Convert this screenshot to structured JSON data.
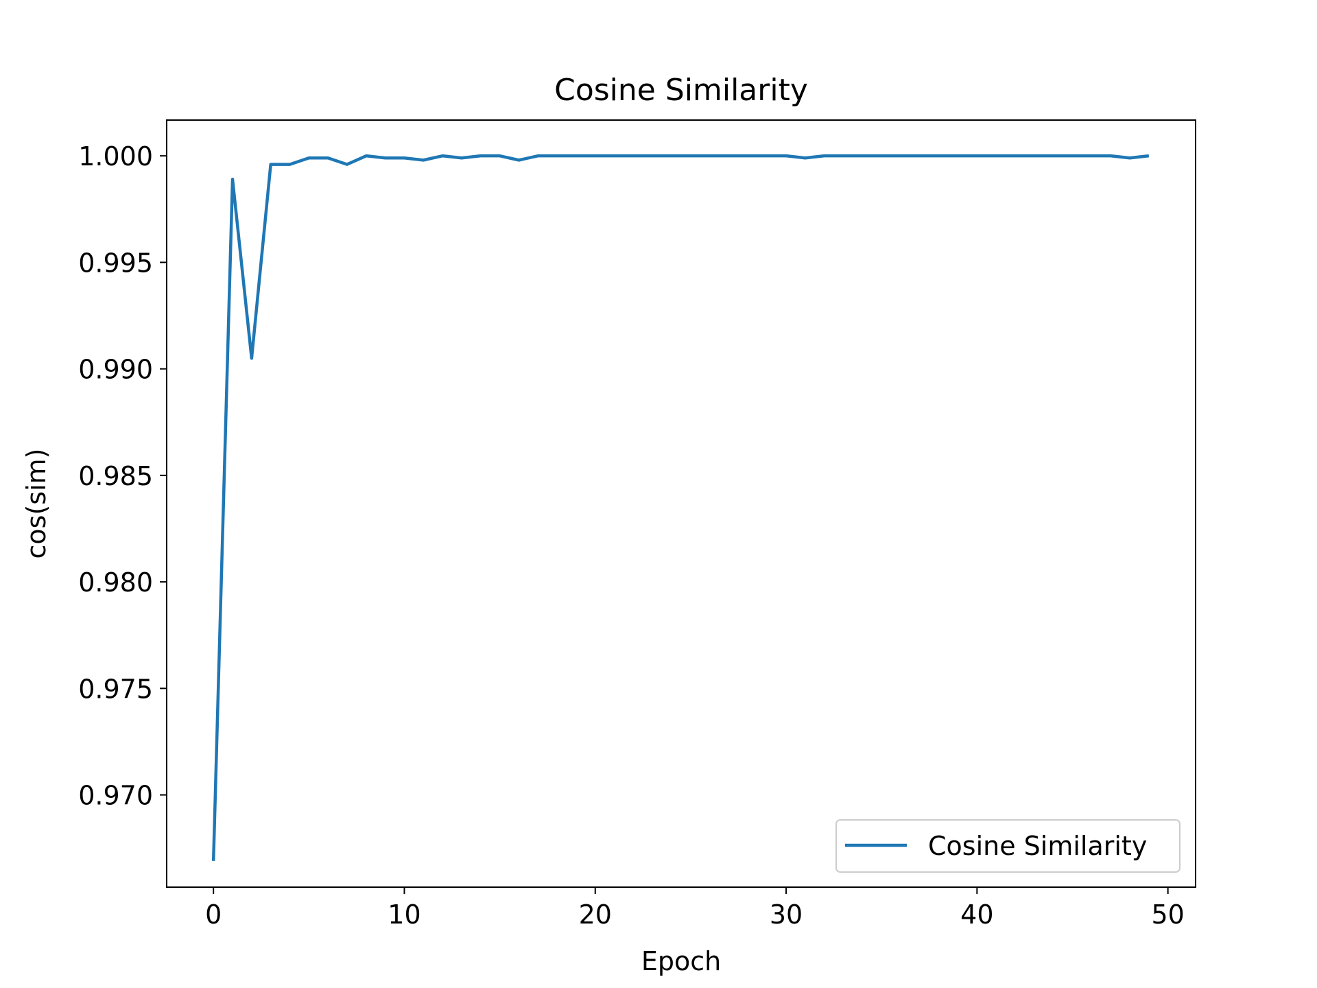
{
  "chart_data": {
    "type": "line",
    "title": "Cosine Similarity",
    "xlabel": "Epoch",
    "ylabel": "cos(sim)",
    "xlim": [
      -2.45,
      51.45
    ],
    "ylim": [
      0.96567,
      1.00168
    ],
    "xticks": [
      0,
      10,
      20,
      30,
      40,
      50
    ],
    "xtick_labels": [
      "0",
      "10",
      "20",
      "30",
      "40",
      "50"
    ],
    "yticks": [
      0.97,
      0.975,
      0.98,
      0.985,
      0.99,
      0.995,
      1.0
    ],
    "ytick_labels": [
      "0.970",
      "0.975",
      "0.980",
      "0.985",
      "0.990",
      "0.995",
      "1.000"
    ],
    "grid": false,
    "legend_position": "lower right",
    "series": [
      {
        "name": "Cosine Similarity",
        "color": "#1f77b4",
        "x": [
          0,
          1,
          2,
          3,
          4,
          5,
          6,
          7,
          8,
          9,
          10,
          11,
          12,
          13,
          14,
          15,
          16,
          17,
          18,
          19,
          20,
          21,
          22,
          23,
          24,
          25,
          26,
          27,
          28,
          29,
          30,
          31,
          32,
          33,
          34,
          35,
          36,
          37,
          38,
          39,
          40,
          41,
          42,
          43,
          44,
          45,
          46,
          47,
          48,
          49
        ],
        "y": [
          0.9669,
          0.9989,
          0.9905,
          0.9996,
          0.9996,
          0.9999,
          0.9999,
          0.9996,
          1.0,
          0.9999,
          0.9999,
          0.9998,
          1.0,
          0.9999,
          1.0,
          1.0,
          0.9998,
          1.0,
          1.0,
          1.0,
          1.0,
          1.0,
          1.0,
          1.0,
          1.0,
          1.0,
          1.0,
          1.0,
          1.0,
          1.0,
          1.0,
          0.9999,
          1.0,
          1.0,
          1.0,
          1.0,
          1.0,
          1.0,
          1.0,
          1.0,
          1.0,
          1.0,
          1.0,
          1.0,
          1.0,
          1.0,
          1.0,
          1.0,
          0.9999,
          1.0
        ]
      }
    ]
  }
}
